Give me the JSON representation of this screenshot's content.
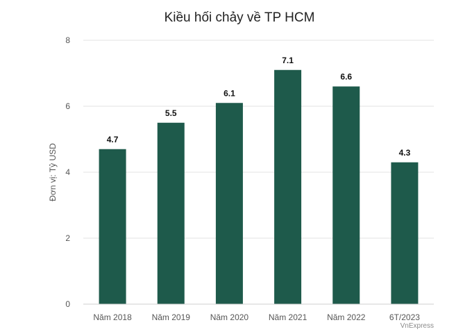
{
  "chart_data": {
    "type": "bar",
    "title": "Kiều hối chảy về TP HCM",
    "ylabel": "Đơn vị: Tỷ USD",
    "xlabel": "",
    "categories": [
      "Năm 2018",
      "Năm 2019",
      "Năm 2020",
      "Năm 2021",
      "Năm 2022",
      "6T/2023"
    ],
    "values": [
      4.7,
      5.5,
      6.1,
      7.1,
      6.6,
      4.3
    ],
    "value_labels": [
      "4.7",
      "5.5",
      "6.1",
      "7.1",
      "6.6",
      "4.3"
    ],
    "ylim": [
      0,
      8
    ],
    "yticks": [
      0,
      2,
      4,
      6,
      8
    ],
    "ytick_labels": [
      "0",
      "2",
      "4",
      "6",
      "8"
    ],
    "grid": true,
    "bar_color": "#1e5a4b",
    "source": "VnExpress"
  }
}
